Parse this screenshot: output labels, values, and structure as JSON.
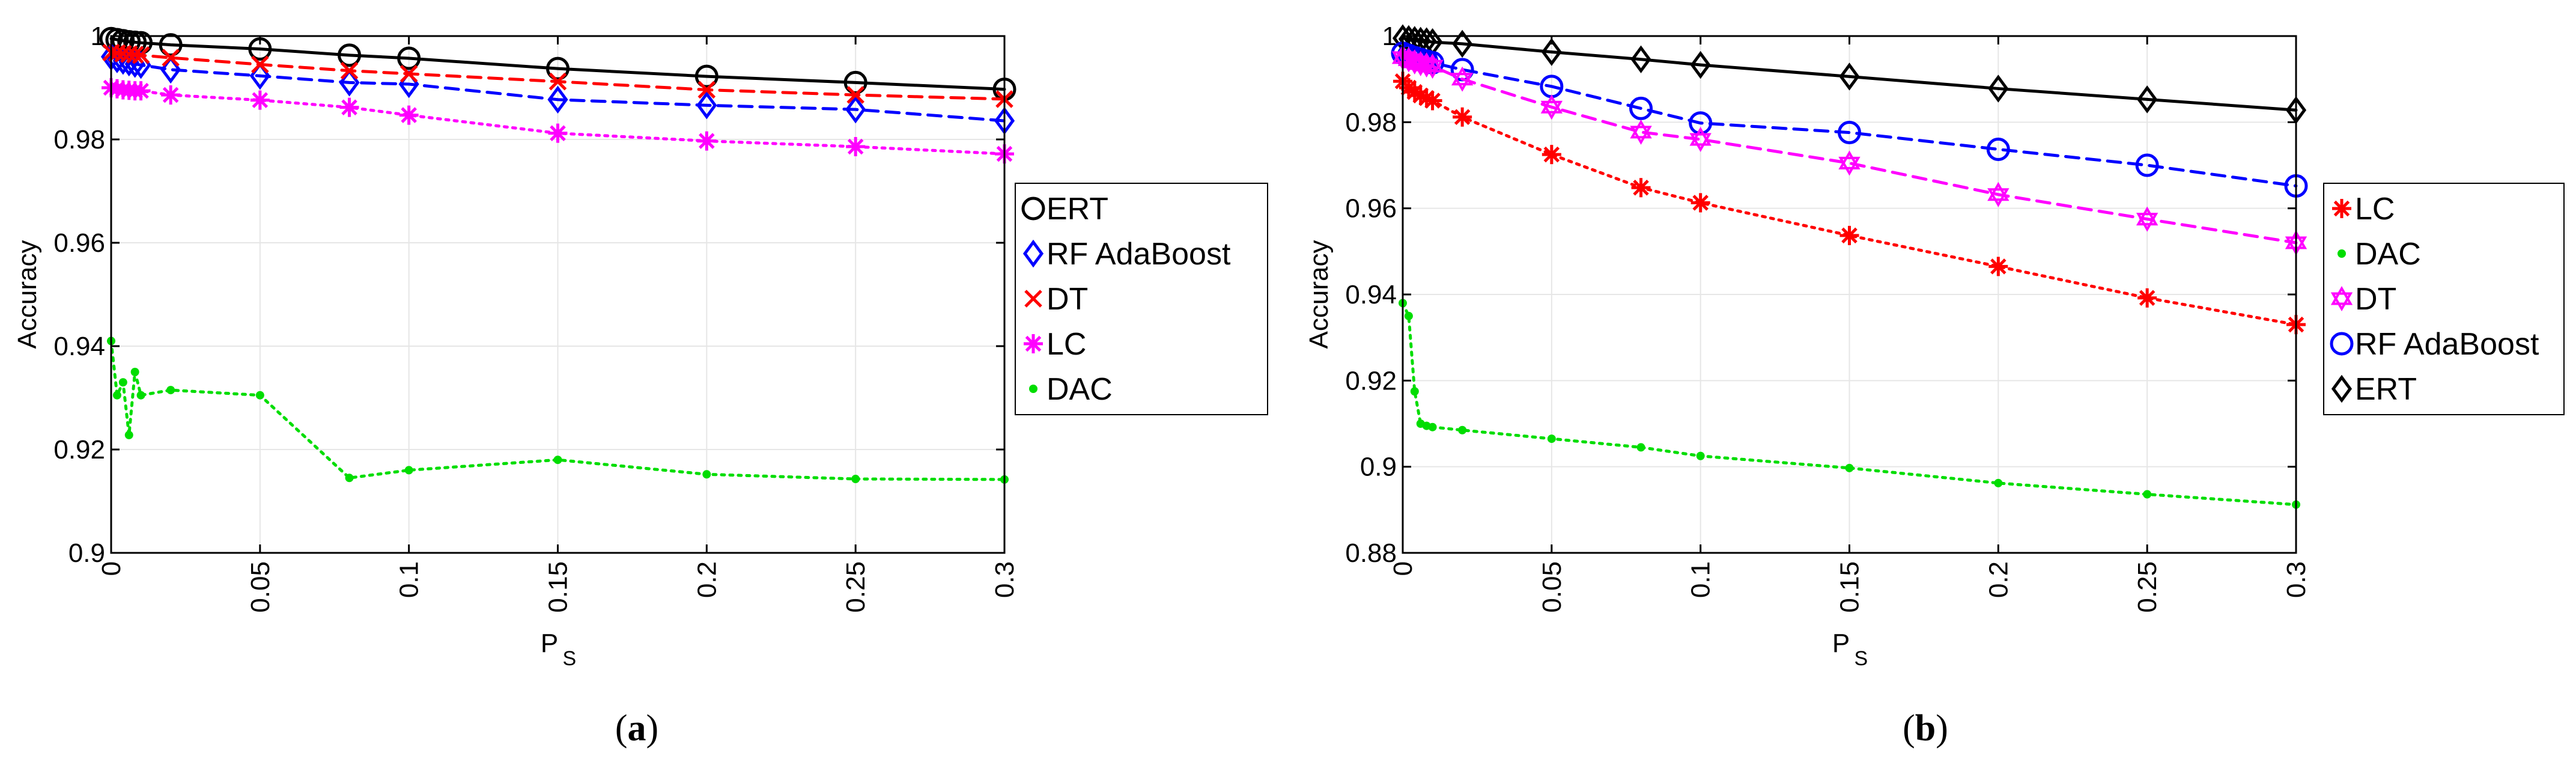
{
  "chart_data": [
    {
      "id": "a",
      "type": "line",
      "caption_letter": "a",
      "xlabel": "P",
      "xlabel_sub": "S",
      "ylabel": "Accuracy",
      "xlim": [
        0,
        0.3
      ],
      "ylim": [
        0.9,
        1.0
      ],
      "xticks": [
        0,
        0.05,
        0.1,
        0.15,
        0.2,
        0.25,
        0.3
      ],
      "xtick_labels": [
        "0",
        "0.05",
        "0.1",
        "0.15",
        "0.2",
        "0.25",
        "0.3"
      ],
      "yticks": [
        0.9,
        0.92,
        0.94,
        0.96,
        0.98,
        1.0
      ],
      "ytick_labels": [
        "0.9",
        "0.92",
        "0.94",
        "0.96",
        "0.98",
        "1"
      ],
      "grid": true,
      "legend_position": "right",
      "legend_order": [
        "ERT",
        "RF AdaBoost",
        "DT",
        "LC",
        "DAC"
      ],
      "series": [
        {
          "name": "ERT",
          "color": "#000000",
          "dash": "solid",
          "marker": "circle",
          "x": [
            0,
            0.002,
            0.004,
            0.006,
            0.008,
            0.01,
            0.02,
            0.05,
            0.08,
            0.1,
            0.15,
            0.2,
            0.25,
            0.3
          ],
          "y": [
            0.9995,
            0.9993,
            0.9991,
            0.9989,
            0.9988,
            0.9987,
            0.9983,
            0.9975,
            0.9963,
            0.9957,
            0.9937,
            0.9922,
            0.991,
            0.9897
          ]
        },
        {
          "name": "RF AdaBoost",
          "color": "#0000ff",
          "dash": "dashed",
          "marker": "diamond",
          "x": [
            0,
            0.002,
            0.004,
            0.006,
            0.008,
            0.01,
            0.02,
            0.05,
            0.08,
            0.1,
            0.15,
            0.2,
            0.25,
            0.3
          ],
          "y": [
            0.996,
            0.9955,
            0.9952,
            0.9949,
            0.9946,
            0.9944,
            0.9935,
            0.9923,
            0.991,
            0.9907,
            0.9877,
            0.9866,
            0.9858,
            0.9836
          ]
        },
        {
          "name": "DT",
          "color": "#ff0000",
          "dash": "dashed",
          "marker": "x",
          "x": [
            0,
            0.002,
            0.004,
            0.006,
            0.008,
            0.01,
            0.02,
            0.05,
            0.08,
            0.1,
            0.15,
            0.2,
            0.25,
            0.3
          ],
          "y": [
            0.9968,
            0.9967,
            0.9966,
            0.9965,
            0.9964,
            0.9963,
            0.9958,
            0.9945,
            0.9933,
            0.9927,
            0.9912,
            0.9896,
            0.9886,
            0.9878
          ]
        },
        {
          "name": "LC",
          "color": "#ff00ff",
          "dash": "dotted",
          "marker": "asterisk",
          "x": [
            0,
            0.002,
            0.004,
            0.006,
            0.008,
            0.01,
            0.02,
            0.05,
            0.08,
            0.1,
            0.15,
            0.2,
            0.25,
            0.3
          ],
          "y": [
            0.99,
            0.9898,
            0.9896,
            0.9895,
            0.9894,
            0.9894,
            0.9886,
            0.9876,
            0.9862,
            0.9847,
            0.9812,
            0.9797,
            0.9786,
            0.9772
          ]
        },
        {
          "name": "DAC",
          "color": "#00dd00",
          "dash": "dotted",
          "marker": "dot",
          "x": [
            0,
            0.002,
            0.004,
            0.006,
            0.008,
            0.01,
            0.02,
            0.05,
            0.08,
            0.1,
            0.15,
            0.2,
            0.25,
            0.3
          ],
          "y": [
            0.941,
            0.9305,
            0.933,
            0.9228,
            0.935,
            0.9305,
            0.9315,
            0.9305,
            0.9145,
            0.916,
            0.918,
            0.9152,
            0.9143,
            0.9142
          ]
        }
      ]
    },
    {
      "id": "b",
      "type": "line",
      "caption_letter": "b",
      "xlabel": "P",
      "xlabel_sub": "S",
      "ylabel": "Accuracy",
      "xlim": [
        0,
        0.3
      ],
      "ylim": [
        0.88,
        1.0
      ],
      "xticks": [
        0,
        0.05,
        0.1,
        0.15,
        0.2,
        0.25,
        0.3
      ],
      "xtick_labels": [
        "0",
        "0.05",
        "0.1",
        "0.15",
        "0.2",
        "0.25",
        "0.3"
      ],
      "yticks": [
        0.88,
        0.9,
        0.92,
        0.94,
        0.96,
        0.98,
        1.0
      ],
      "ytick_labels": [
        "0.88",
        "0.9",
        "0.92",
        "0.94",
        "0.96",
        "0.98",
        "1"
      ],
      "grid": true,
      "legend_position": "right",
      "legend_order": [
        "LC",
        "DAC",
        "DT",
        "RF AdaBoost",
        "ERT"
      ],
      "series": [
        {
          "name": "ERT",
          "color": "#000000",
          "dash": "solid",
          "marker": "diamond",
          "x": [
            0,
            0.002,
            0.004,
            0.006,
            0.008,
            0.01,
            0.02,
            0.05,
            0.08,
            0.1,
            0.15,
            0.2,
            0.25,
            0.3
          ],
          "y": [
            0.9995,
            0.9993,
            0.9991,
            0.9989,
            0.9988,
            0.9986,
            0.9982,
            0.9963,
            0.9946,
            0.9933,
            0.9906,
            0.9878,
            0.9853,
            0.9828
          ]
        },
        {
          "name": "RF AdaBoost",
          "color": "#0000ff",
          "dash": "dashed",
          "marker": "circle",
          "x": [
            0,
            0.002,
            0.004,
            0.006,
            0.008,
            0.01,
            0.02,
            0.05,
            0.08,
            0.1,
            0.15,
            0.2,
            0.25,
            0.3
          ],
          "y": [
            0.996,
            0.9955,
            0.995,
            0.9946,
            0.9942,
            0.9938,
            0.9922,
            0.9883,
            0.9832,
            0.9798,
            0.9776,
            0.9737,
            0.97,
            0.9652
          ]
        },
        {
          "name": "DT",
          "color": "#ff00ff",
          "dash": "dashed",
          "marker": "star",
          "x": [
            0,
            0.002,
            0.004,
            0.006,
            0.008,
            0.01,
            0.02,
            0.05,
            0.08,
            0.1,
            0.15,
            0.2,
            0.25,
            0.3
          ],
          "y": [
            0.995,
            0.9945,
            0.994,
            0.9936,
            0.9933,
            0.993,
            0.99,
            0.9835,
            0.9777,
            0.976,
            0.9705,
            0.9632,
            0.9575,
            0.952
          ]
        },
        {
          "name": "LC",
          "color": "#ff0000",
          "dash": "dotted",
          "marker": "asterisk",
          "x": [
            0,
            0.002,
            0.004,
            0.006,
            0.008,
            0.01,
            0.02,
            0.05,
            0.08,
            0.1,
            0.15,
            0.2,
            0.25,
            0.3
          ],
          "y": [
            0.9895,
            0.988,
            0.987,
            0.9862,
            0.9856,
            0.985,
            0.9812,
            0.9725,
            0.9648,
            0.9613,
            0.9537,
            0.9465,
            0.9392,
            0.933
          ]
        },
        {
          "name": "DAC",
          "color": "#00dd00",
          "dash": "dotted",
          "marker": "dot",
          "x": [
            0,
            0.002,
            0.004,
            0.006,
            0.008,
            0.01,
            0.02,
            0.05,
            0.08,
            0.1,
            0.15,
            0.2,
            0.25,
            0.3
          ],
          "y": [
            0.938,
            0.935,
            0.9175,
            0.91,
            0.9095,
            0.9092,
            0.9085,
            0.9065,
            0.9045,
            0.9025,
            0.8997,
            0.8962,
            0.8936,
            0.8912
          ]
        }
      ]
    }
  ]
}
